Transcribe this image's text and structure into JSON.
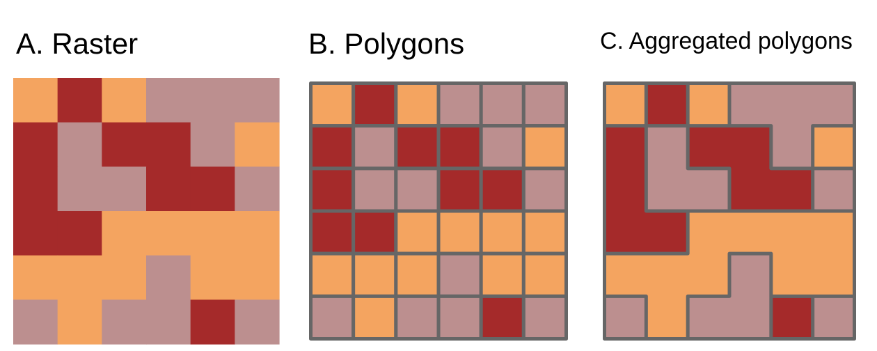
{
  "panels": {
    "raster": {
      "title": "A. Raster"
    },
    "polygons": {
      "title": "B. Polygons"
    },
    "aggregated": {
      "title": "C. Aggregated polygons"
    }
  },
  "colors": {
    "class_1": "#F4A460",
    "class_2": "#A52A2A",
    "class_3": "#BC8F8F",
    "border": "#666666"
  },
  "grid": {
    "rows": 6,
    "cols": 6,
    "cells": [
      [
        1,
        2,
        1,
        3,
        3,
        3
      ],
      [
        2,
        3,
        2,
        2,
        3,
        1
      ],
      [
        2,
        3,
        3,
        2,
        2,
        3
      ],
      [
        2,
        2,
        1,
        1,
        1,
        1
      ],
      [
        1,
        1,
        1,
        3,
        1,
        1
      ],
      [
        3,
        1,
        3,
        3,
        2,
        3
      ]
    ]
  }
}
